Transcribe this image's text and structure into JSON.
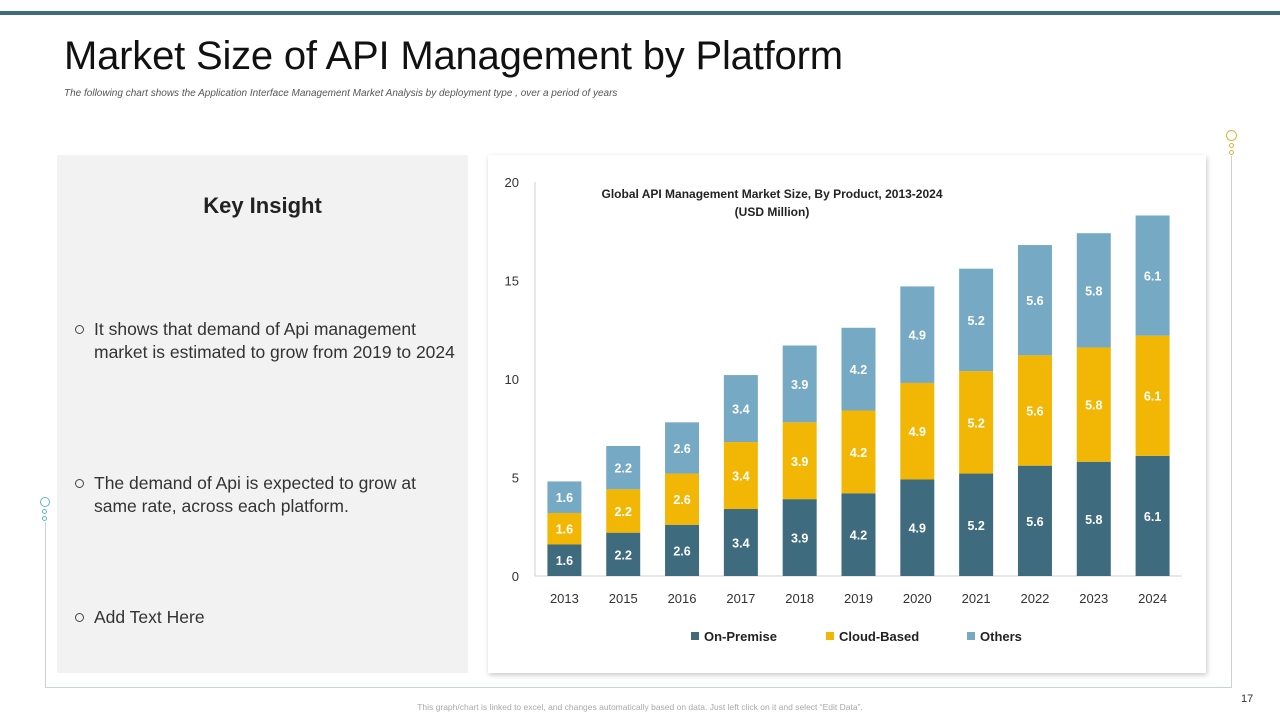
{
  "header": {
    "title": "Market Size of API Management by Platform",
    "subtitle": "The following chart shows the Application Interface Management Market Analysis by deployment type , over a period of years"
  },
  "insight": {
    "title": "Key Insight",
    "bullets": [
      "It shows that demand of Api management market is estimated to grow from 2019 to 2024",
      "The demand of Api is expected to grow at same rate, across each platform.",
      "Add Text Here"
    ]
  },
  "footer": {
    "note": "This graph/chart is linked to excel, and changes automatically based on data. Just left click on it and select “Edit Data”.",
    "page_number": "17"
  },
  "colors": {
    "on_premise": "#3e6b7d",
    "cloud_based": "#f2b705",
    "others": "#76a9c4",
    "accent_bar": "#3e6b7d"
  },
  "chart_data": {
    "type": "bar",
    "stacked": true,
    "title": "Global API Management Market Size, By Product, 2013-2024",
    "subtitle": "(USD Million)",
    "xlabel": "",
    "ylabel": "",
    "ylim": [
      0,
      20
    ],
    "yticks": [
      0,
      5,
      10,
      15,
      20
    ],
    "grid": false,
    "legend_position": "bottom",
    "categories": [
      "2013",
      "2015",
      "2016",
      "2017",
      "2018",
      "2019",
      "2020",
      "2021",
      "2022",
      "2023",
      "2024"
    ],
    "series": [
      {
        "name": "On-Premise",
        "color": "#3e6b7d",
        "values": [
          1.6,
          2.2,
          2.6,
          3.4,
          3.9,
          4.2,
          4.9,
          5.2,
          5.6,
          5.8,
          6.1
        ]
      },
      {
        "name": "Cloud-Based",
        "color": "#f2b705",
        "values": [
          1.6,
          2.2,
          2.6,
          3.4,
          3.9,
          4.2,
          4.9,
          5.2,
          5.6,
          5.8,
          6.1
        ]
      },
      {
        "name": "Others",
        "color": "#76a9c4",
        "values": [
          1.6,
          2.2,
          2.6,
          3.4,
          3.9,
          4.2,
          4.9,
          5.2,
          5.6,
          5.8,
          6.1
        ]
      }
    ]
  }
}
